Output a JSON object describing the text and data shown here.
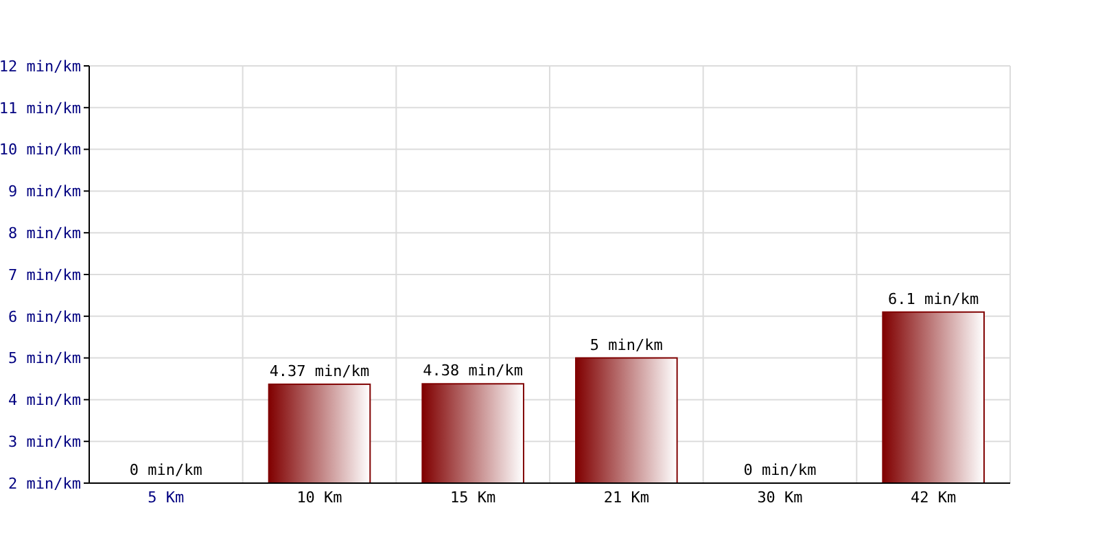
{
  "chart_data": {
    "type": "bar",
    "categories": [
      "5 Km",
      "10 Km",
      "15 Km",
      "21 Km",
      "30 Km",
      "42 Km"
    ],
    "values": [
      null,
      4.37,
      4.38,
      5,
      null,
      6.1
    ],
    "value_labels": [
      "0 min/km",
      "4.37 min/km",
      "4.38 min/km",
      "5 min/km",
      "0 min/km",
      "6.1 min/km"
    ],
    "color": "#800000",
    "ylim": [
      2,
      12
    ],
    "yticks": [
      {
        "value": 2,
        "label": "2 min/km"
      },
      {
        "value": 3,
        "label": "3 min/km"
      },
      {
        "value": 4,
        "label": "4 min/km"
      },
      {
        "value": 5,
        "label": "5 min/km"
      },
      {
        "value": 6,
        "label": "6 min/km"
      },
      {
        "value": 7,
        "label": "7 min/km"
      },
      {
        "value": 8,
        "label": "8 min/km"
      },
      {
        "value": 9,
        "label": "9 min/km"
      },
      {
        "value": 10,
        "label": "10 min/km"
      },
      {
        "value": 11,
        "label": "11 min/km"
      },
      {
        "value": 12,
        "label": "12 min/km"
      }
    ],
    "grid": true
  }
}
